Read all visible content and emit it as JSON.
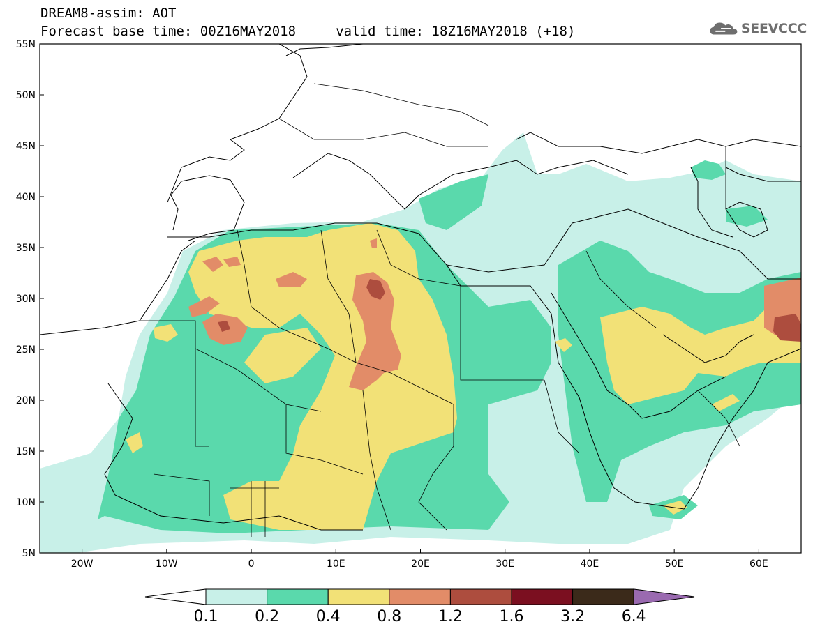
{
  "header": {
    "line1": "DREAM8-assim: AOT",
    "line2": "Forecast base time: 00Z16MAY2018     valid time: 18Z16MAY2018 (+18)",
    "logo_text": "SEEVCCC",
    "logo_icon": "cloud-icon"
  },
  "map": {
    "lat_labels": [
      "55N",
      "50N",
      "45N",
      "40N",
      "35N",
      "30N",
      "25N",
      "20N",
      "15N",
      "10N",
      "5N"
    ],
    "lon_labels": [
      "20W",
      "10W",
      "0",
      "10E",
      "20E",
      "30E",
      "40E",
      "50E",
      "60E"
    ],
    "lat_range": [
      5,
      55
    ],
    "lon_range": [
      -25,
      65
    ]
  },
  "colorbar": {
    "labels": [
      "0.1",
      "0.2",
      "0.4",
      "0.8",
      "1.2",
      "1.6",
      "3.2",
      "6.4"
    ],
    "colors": [
      "#c8f0e8",
      "#5ad9ac",
      "#f2e177",
      "#e28c68",
      "#ad4d3e",
      "#7b0f20",
      "#3b2a1a",
      "#9a6ab0"
    ],
    "under_color": "#ffffff"
  }
}
